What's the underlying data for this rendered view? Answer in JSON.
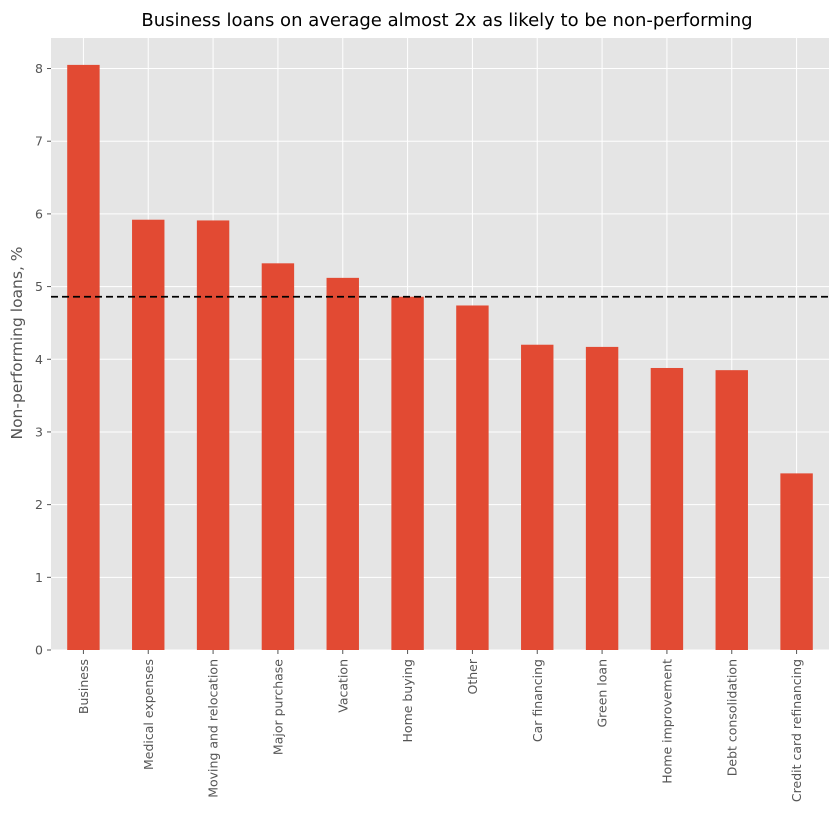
{
  "chart_data": {
    "type": "bar",
    "title": "Business loans on average almost 2x as likely to be non-performing",
    "xlabel": "",
    "ylabel": "Non-performing loans, %",
    "categories": [
      "Business",
      "Medical expenses",
      "Moving and relocation",
      "Major purchase",
      "Vacation",
      "Home buying",
      "Other",
      "Car financing",
      "Green loan",
      "Home improvement",
      "Debt consolidation",
      "Credit card refinancing"
    ],
    "values": [
      8.05,
      5.92,
      5.91,
      5.32,
      5.12,
      4.86,
      4.74,
      4.2,
      4.17,
      3.88,
      3.85,
      2.43
    ],
    "reference_line": {
      "value": 4.86,
      "style": "dashed",
      "color": "#000000"
    },
    "ylim": [
      0,
      8.42
    ],
    "yticks": [
      0,
      1,
      2,
      3,
      4,
      5,
      6,
      7,
      8
    ],
    "grid": true,
    "colors": {
      "bar": "#E24A33",
      "background": "#E5E5E5",
      "grid": "#FFFFFF",
      "text": "#555555"
    }
  }
}
